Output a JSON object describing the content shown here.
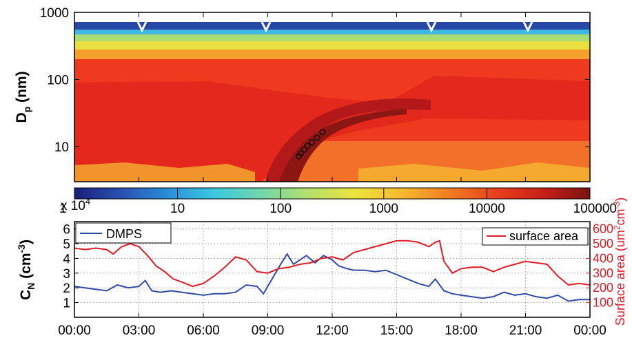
{
  "chart_data": [
    {
      "type": "heatmap",
      "ylabel": "D",
      "ylabel_sub": "p",
      "ylabel_unit": " (nm)",
      "yscale": "log",
      "ylim": [
        3,
        1000
      ],
      "ytick_labels": [
        "1000",
        "100",
        "10"
      ],
      "ytick_values": [
        1000,
        100,
        10
      ],
      "xlim": [
        0,
        24
      ],
      "colormap": "jet",
      "markers": [
        {
          "time": 10.45,
          "dp": 7.2
        },
        {
          "time": 10.55,
          "dp": 8.0
        },
        {
          "time": 10.7,
          "dp": 9.0
        },
        {
          "time": 10.85,
          "dp": 10.2
        },
        {
          "time": 11.05,
          "dp": 11.6
        },
        {
          "time": 11.3,
          "dp": 13.5
        },
        {
          "time": 11.55,
          "dp": 16.5
        }
      ]
    },
    {
      "type": "colorbar",
      "scale": "log",
      "tick_labels": [
        "1",
        "10",
        "100",
        "1000",
        "10000",
        "100000"
      ],
      "tick_values": [
        1,
        10,
        100,
        1000,
        10000,
        100000
      ],
      "colors": [
        "#1a1f7a",
        "#2b4fb3",
        "#2a8fd8",
        "#3cc8e0",
        "#72d6a8",
        "#b5e06a",
        "#ece43c",
        "#f5b82e",
        "#f07d22",
        "#e8401c",
        "#c8201a",
        "#7a1410"
      ]
    },
    {
      "type": "line",
      "multiplier_label": "x 10",
      "multiplier_exp": "4",
      "ylabel": "C",
      "ylabel_sub": "N",
      "ylabel_unit": " (cm",
      "ylabel_unit_sup": "-3",
      "ylabel_unit_end": ")",
      "y2label": "Surface area (um",
      "y2label_sup1": "2",
      "y2label_mid": "cm",
      "y2label_sup2": "-3",
      "y2label_end": ")",
      "ylim": [
        0,
        6.5
      ],
      "y2lim": [
        0,
        650
      ],
      "ytick_labels": [
        "1",
        "2",
        "3",
        "4",
        "5",
        "6"
      ],
      "y2tick_labels": [
        "100",
        "200",
        "300",
        "400",
        "500",
        "600"
      ],
      "xlim": [
        0,
        24
      ],
      "xtick_labels": [
        "00:00",
        "03:00",
        "06:00",
        "09:00",
        "12:00",
        "15:00",
        "18:00",
        "21:00",
        "00:00"
      ],
      "grid": true,
      "series": [
        {
          "name": "DMPS",
          "axis": "left",
          "color": "#2e4aa8",
          "x": [
            0,
            0.5,
            1.0,
            1.5,
            2.0,
            2.5,
            3.0,
            3.3,
            3.6,
            4.0,
            4.5,
            5.0,
            5.5,
            6.0,
            6.5,
            7.0,
            7.5,
            8.0,
            8.5,
            8.8,
            9.2,
            9.6,
            9.9,
            10.2,
            10.5,
            10.8,
            11.2,
            11.6,
            12.0,
            12.3,
            12.7,
            13.0,
            13.5,
            14.0,
            14.5,
            15.0,
            15.5,
            16.0,
            16.5,
            16.8,
            17.2,
            17.6,
            18.0,
            18.5,
            19.0,
            19.5,
            20.0,
            20.5,
            21.0,
            21.5,
            22.0,
            22.5,
            23.0,
            23.5,
            24.0
          ],
          "y": [
            2.1,
            2.0,
            1.9,
            1.8,
            2.2,
            2.0,
            2.1,
            2.5,
            1.8,
            1.7,
            1.8,
            1.7,
            1.6,
            1.5,
            1.6,
            1.6,
            1.7,
            2.2,
            2.1,
            1.6,
            2.6,
            3.6,
            4.3,
            3.6,
            3.9,
            4.2,
            3.7,
            4.2,
            3.9,
            3.5,
            3.3,
            3.2,
            3.2,
            3.1,
            3.2,
            2.9,
            2.6,
            2.3,
            2.1,
            2.6,
            1.8,
            1.6,
            1.5,
            1.4,
            1.3,
            1.4,
            1.7,
            1.5,
            1.6,
            1.4,
            1.3,
            1.5,
            1.1,
            1.2,
            1.2
          ]
        },
        {
          "name": "surface area",
          "axis": "right",
          "color": "#e01b24",
          "x": [
            0,
            0.5,
            1.0,
            1.5,
            1.8,
            2.2,
            2.6,
            3.0,
            3.4,
            3.8,
            4.2,
            4.6,
            5.0,
            5.5,
            6.0,
            6.5,
            7.0,
            7.5,
            8.0,
            8.5,
            9.0,
            9.5,
            10.0,
            10.5,
            11.0,
            11.5,
            12.0,
            12.5,
            13.0,
            13.5,
            14.0,
            14.5,
            15.0,
            15.5,
            16.0,
            16.5,
            16.8,
            17.0,
            17.2,
            17.6,
            18.0,
            18.5,
            19.0,
            19.5,
            20.0,
            20.5,
            21.0,
            21.5,
            22.0,
            22.5,
            23.0,
            23.5,
            24.0
          ],
          "y": [
            470,
            460,
            470,
            460,
            430,
            480,
            500,
            480,
            420,
            350,
            310,
            260,
            240,
            210,
            230,
            280,
            340,
            410,
            390,
            310,
            300,
            330,
            340,
            360,
            370,
            400,
            410,
            390,
            440,
            460,
            480,
            500,
            520,
            520,
            510,
            480,
            510,
            520,
            380,
            300,
            330,
            340,
            340,
            310,
            340,
            360,
            380,
            370,
            360,
            280,
            220,
            230,
            220
          ]
        }
      ]
    }
  ]
}
